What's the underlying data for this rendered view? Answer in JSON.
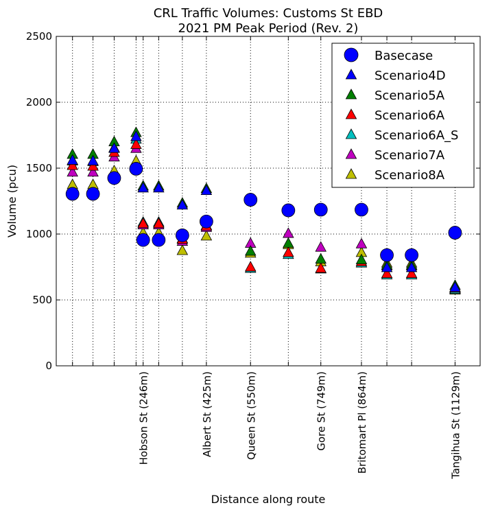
{
  "chart_data": {
    "type": "scatter",
    "title": "CRL Traffic Volumes: Customs St EBD",
    "subtitle": "2021 PM Peak Period (Rev. 2)",
    "xlabel": "Distance along route",
    "ylabel": "Volume (pcu)",
    "ylim": [
      0,
      2500
    ],
    "yticks": [
      0,
      500,
      1000,
      1500,
      2000,
      2500
    ],
    "grid": true,
    "legend_position": "top-right",
    "x_labeled_ticks": [
      {
        "x": 246,
        "label": "Hobson St (246m)"
      },
      {
        "x": 425,
        "label": "Albert St (425m)"
      },
      {
        "x": 550,
        "label": "Queen St (550m)"
      },
      {
        "x": 749,
        "label": "Gore St (749m)"
      },
      {
        "x": 864,
        "label": "Britomart Pl (864m)"
      },
      {
        "x": 1129,
        "label": "Tangihua St (1129m)"
      }
    ],
    "x": [
      46,
      104,
      164,
      226,
      246,
      290,
      357,
      425,
      550,
      657,
      749,
      864,
      936,
      1006,
      1129
    ],
    "series": [
      {
        "name": "Basecase",
        "marker": "circle",
        "color": "#0000ff",
        "values": [
          1305,
          1305,
          1425,
          1495,
          955,
          955,
          990,
          1095,
          1260,
          1180,
          1185,
          1185,
          840,
          840,
          1010
        ]
      },
      {
        "name": "Scenario4D",
        "marker": "triangle",
        "color": "#0000ff",
        "values": [
          1560,
          1555,
          1650,
          1740,
          1350,
          1350,
          1220,
          1330,
          null,
          null,
          null,
          null,
          745,
          745,
          595
        ]
      },
      {
        "name": "Scenario5A",
        "marker": "triangle",
        "color": "#007f00",
        "values": [
          1605,
          1605,
          1700,
          1770,
          1365,
          1365,
          1235,
          1345,
          870,
          930,
          810,
          805,
          765,
          765,
          610
        ]
      },
      {
        "name": "Scenario6A",
        "marker": "triangle",
        "color": "#ff0000",
        "values": [
          1520,
          1515,
          1620,
          1680,
          1080,
          1080,
          960,
          1060,
          750,
          860,
          740,
          790,
          700,
          700,
          590
        ]
      },
      {
        "name": "Scenario6A_S",
        "marker": "triangle",
        "color": "#00bfbf",
        "values": [
          1555,
          1550,
          1655,
          1720,
          1090,
          1090,
          965,
          1065,
          740,
          845,
          735,
          780,
          690,
          690,
          580
        ]
      },
      {
        "name": "Scenario7A",
        "marker": "triangle",
        "color": "#bf00bf",
        "values": [
          1470,
          1470,
          1585,
          1650,
          1070,
          1070,
          945,
          1050,
          930,
          1005,
          900,
          925,
          760,
          760,
          585
        ]
      },
      {
        "name": "Scenario8A",
        "marker": "triangle",
        "color": "#bfbf00",
        "values": [
          1375,
          1375,
          1480,
          1555,
          1010,
          1010,
          875,
          985,
          855,
          920,
          790,
          860,
          780,
          780,
          575
        ]
      }
    ]
  }
}
